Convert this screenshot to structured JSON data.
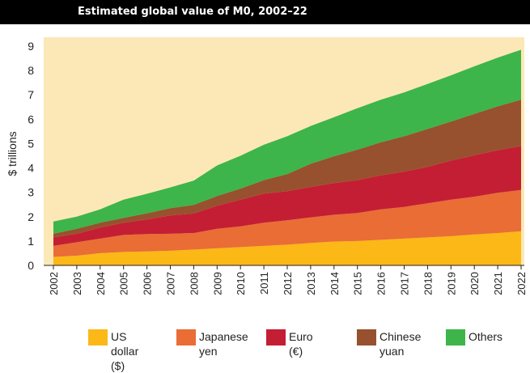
{
  "chart_data": {
    "type": "area",
    "stacked": true,
    "title": "Estimated global value of M0, 2002–22",
    "ylabel": "$ trillions",
    "xlabel": "",
    "ylim": [
      0,
      9
    ],
    "xlim": [
      2002,
      2022
    ],
    "yticks": [
      "0",
      "1",
      "2",
      "3",
      "4",
      "5",
      "6",
      "7",
      "8",
      "9"
    ],
    "xticks": [
      "2002",
      "2003",
      "2004",
      "2005",
      "2006",
      "2007",
      "2008",
      "2009",
      "2010",
      "2011",
      "2012",
      "2013",
      "2014",
      "2015",
      "2016",
      "2017",
      "2018",
      "2019",
      "2020",
      "2021",
      "2022"
    ],
    "background_color": "#fce8b6",
    "grid": false,
    "legend_position": "bottom",
    "x": [
      2002,
      2003,
      2004,
      2005,
      2006,
      2007,
      2008,
      2009,
      2010,
      2011,
      2012,
      2013,
      2014,
      2015,
      2016,
      2017,
      2018,
      2019,
      2020,
      2021,
      2022
    ],
    "series": [
      {
        "name": "US dollar\n($)",
        "color": "#fbb817",
        "values": [
          0.35,
          0.4,
          0.5,
          0.55,
          0.57,
          0.6,
          0.65,
          0.7,
          0.75,
          0.8,
          0.85,
          0.92,
          0.98,
          1.0,
          1.05,
          1.1,
          1.15,
          1.2,
          1.27,
          1.33,
          1.4
        ]
      },
      {
        "name": "Japanese\nyen",
        "color": "#e96d35",
        "values": [
          0.45,
          0.55,
          0.6,
          0.7,
          0.72,
          0.7,
          0.68,
          0.8,
          0.85,
          0.95,
          1.0,
          1.05,
          1.1,
          1.15,
          1.25,
          1.3,
          1.4,
          1.5,
          1.55,
          1.65,
          1.7
        ]
      },
      {
        "name": "Euro (€)",
        "color": "#c41e34",
        "values": [
          0.35,
          0.35,
          0.45,
          0.5,
          0.6,
          0.75,
          0.8,
          0.95,
          1.1,
          1.2,
          1.2,
          1.25,
          1.3,
          1.35,
          1.4,
          1.45,
          1.5,
          1.6,
          1.7,
          1.75,
          1.8
        ]
      },
      {
        "name": "Chinese\nyuan",
        "color": "#97512e",
        "values": [
          0.15,
          0.2,
          0.2,
          0.2,
          0.25,
          0.3,
          0.35,
          0.4,
          0.45,
          0.55,
          0.7,
          0.95,
          1.1,
          1.25,
          1.35,
          1.45,
          1.55,
          1.6,
          1.7,
          1.8,
          1.9
        ]
      },
      {
        "name": "Others",
        "color": "#3db54a",
        "values": [
          0.5,
          0.5,
          0.55,
          0.75,
          0.8,
          0.85,
          1.0,
          1.25,
          1.35,
          1.45,
          1.55,
          1.55,
          1.6,
          1.7,
          1.75,
          1.8,
          1.85,
          1.9,
          1.95,
          2.0,
          2.05
        ]
      }
    ]
  }
}
